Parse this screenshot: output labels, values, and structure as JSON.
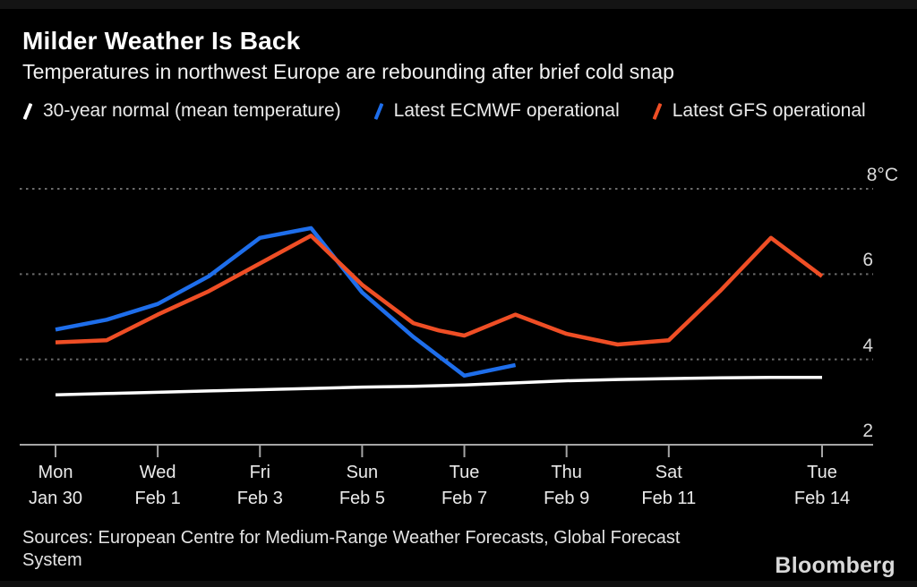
{
  "header": {
    "title": "Milder Weather Is Back",
    "subtitle": "Temperatures in northwest Europe are rebounding after brief cold snap"
  },
  "legend": [
    {
      "label": "30-year normal (mean temperature)",
      "color": "#ffffff"
    },
    {
      "label": "Latest ECMWF operational",
      "color": "#1e6eeb"
    },
    {
      "label": "Latest GFS operational",
      "color": "#ef4e25"
    }
  ],
  "footer": {
    "sources": "Sources: European Centre for Medium-Range Weather Forecasts, Global Forecast System",
    "brand": "Bloomberg"
  },
  "chart_data": {
    "type": "line",
    "title": "Milder Weather Is Back",
    "subtitle": "Temperatures in northwest Europe are rebounding after brief cold snap",
    "x_unit": "days (day 0 = Mon Jan 30)",
    "y_unit": "°C",
    "xlim": [
      0,
      15
    ],
    "ylim": [
      2,
      8
    ],
    "grid": "horizontal-dotted",
    "legend_position": "top",
    "x_ticks": [
      {
        "day": 0,
        "line1": "Mon",
        "line2": "Jan 30"
      },
      {
        "day": 2,
        "line1": "Wed",
        "line2": "Feb 1"
      },
      {
        "day": 4,
        "line1": "Fri",
        "line2": "Feb 3"
      },
      {
        "day": 6,
        "line1": "Sun",
        "line2": "Feb 5"
      },
      {
        "day": 8,
        "line1": "Tue",
        "line2": "Feb 7"
      },
      {
        "day": 10,
        "line1": "Thu",
        "line2": "Feb 9"
      },
      {
        "day": 12,
        "line1": "Sat",
        "line2": "Feb 11"
      },
      {
        "day": 15,
        "line1": "Tue",
        "line2": "Feb 14"
      }
    ],
    "y_ticks": [
      {
        "value": 8,
        "label": "8°C"
      },
      {
        "value": 6,
        "label": "6"
      },
      {
        "value": 4,
        "label": "4"
      },
      {
        "value": 2,
        "label": "2"
      }
    ],
    "series": [
      {
        "id": "normal",
        "name": "30-year normal (mean temperature)",
        "color": "#ffffff",
        "width": 3.5,
        "points": [
          [
            0,
            3.17
          ],
          [
            1,
            3.2
          ],
          [
            2,
            3.23
          ],
          [
            3,
            3.26
          ],
          [
            4,
            3.29
          ],
          [
            5,
            3.32
          ],
          [
            6,
            3.35
          ],
          [
            7,
            3.37
          ],
          [
            8,
            3.4
          ],
          [
            9,
            3.45
          ],
          [
            10,
            3.5
          ],
          [
            11,
            3.53
          ],
          [
            12,
            3.55
          ],
          [
            13,
            3.57
          ],
          [
            14,
            3.58
          ],
          [
            15,
            3.58
          ]
        ]
      },
      {
        "id": "ecmwf",
        "name": "Latest ECMWF operational",
        "color": "#1e6eeb",
        "width": 4.5,
        "points": [
          [
            0,
            4.7
          ],
          [
            1,
            4.93
          ],
          [
            2,
            5.3
          ],
          [
            3,
            5.95
          ],
          [
            4,
            6.85
          ],
          [
            5,
            7.08
          ],
          [
            6,
            5.57
          ],
          [
            7,
            4.53
          ],
          [
            8,
            3.62
          ],
          [
            9,
            3.87
          ]
        ]
      },
      {
        "id": "gfs",
        "name": "Latest GFS operational",
        "color": "#ef4e25",
        "width": 4.5,
        "points": [
          [
            0,
            4.4
          ],
          [
            1,
            4.45
          ],
          [
            2,
            5.05
          ],
          [
            3,
            5.6
          ],
          [
            4,
            6.25
          ],
          [
            5,
            6.9
          ],
          [
            6,
            5.75
          ],
          [
            7,
            4.85
          ],
          [
            7.5,
            4.68
          ],
          [
            8,
            4.56
          ],
          [
            9,
            5.05
          ],
          [
            10,
            4.6
          ],
          [
            11,
            4.35
          ],
          [
            12,
            4.45
          ],
          [
            13,
            5.6
          ],
          [
            14,
            6.85
          ],
          [
            15,
            5.95
          ]
        ]
      }
    ]
  }
}
